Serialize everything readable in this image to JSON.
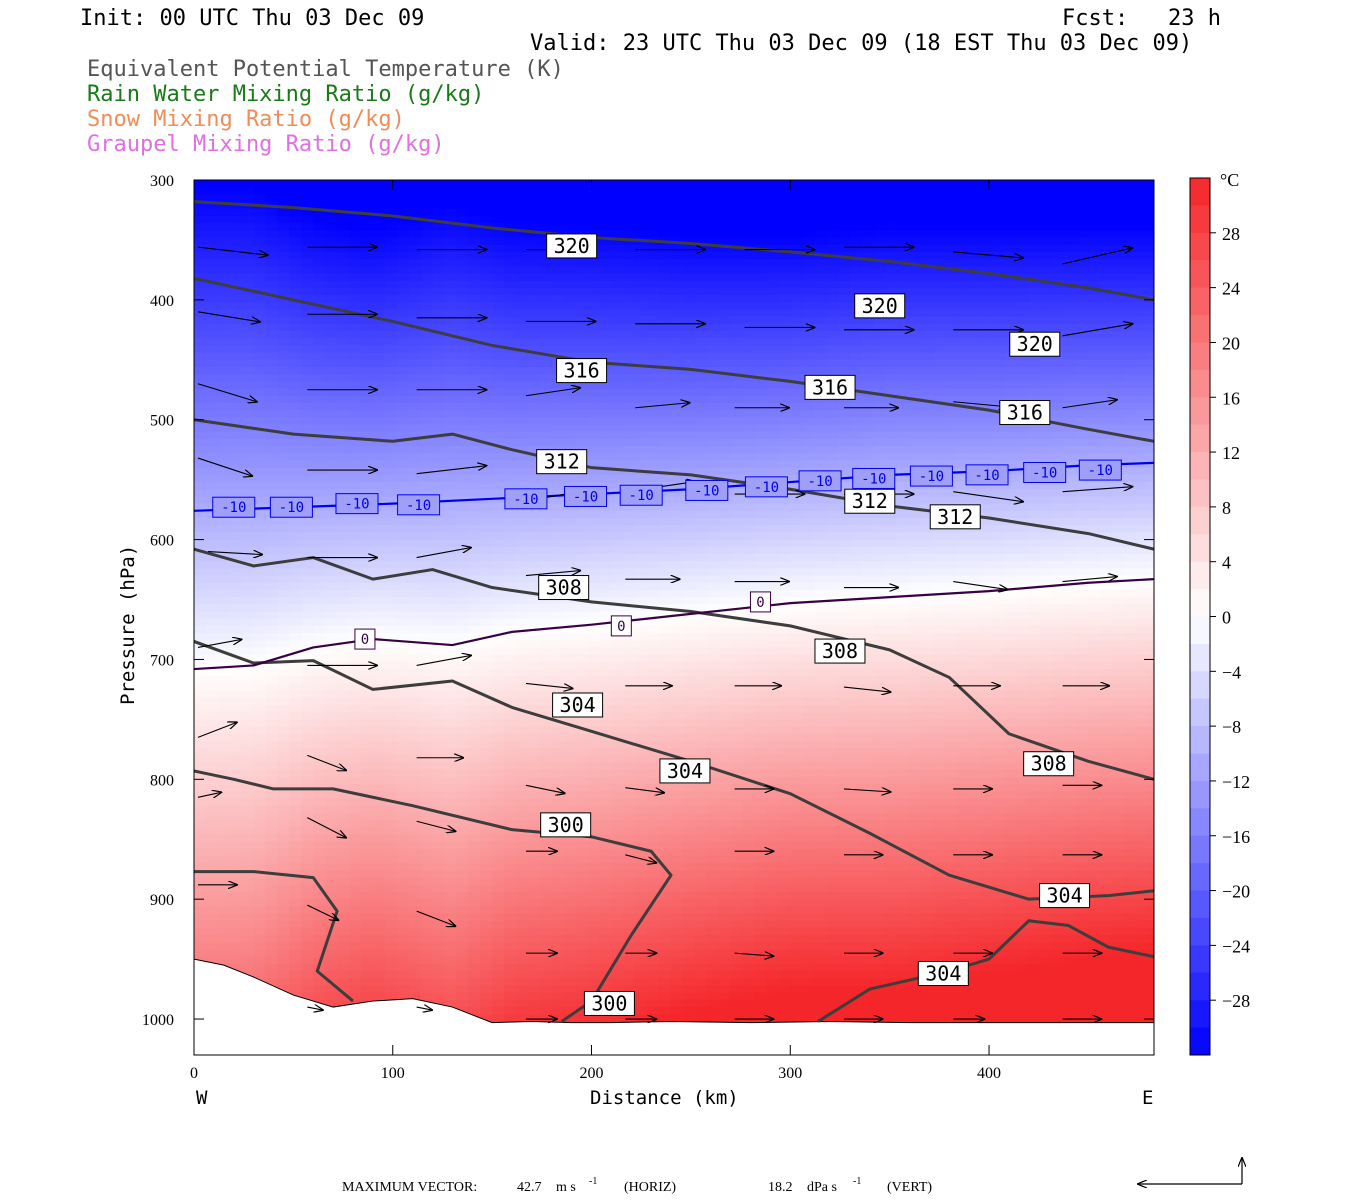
{
  "header": {
    "init": "Init: 00 UTC Thu 03 Dec 09",
    "fcst": "Fcst:   23 h",
    "valid": "Valid: 23 UTC Thu 03 Dec 09 (18 EST Thu 03 Dec 09)",
    "fields": [
      {
        "label": "Equivalent Potential Temperature (K)",
        "color": "#555555"
      },
      {
        "label": "Rain Water Mixing Ratio (g/kg)",
        "color": "#1a7a1a"
      },
      {
        "label": "Snow Mixing Ratio (g/kg)",
        "color": "#f08c5a"
      },
      {
        "label": "Graupel Mixing Ratio (g/kg)",
        "color": "#e070e0"
      }
    ]
  },
  "chart_data": {
    "type": "heatmap",
    "xlabel": "Distance (km)",
    "ylabel": "Pressure (hPa)",
    "xlim": [
      0,
      483
    ],
    "ylim": [
      1030,
      300
    ],
    "x_ticks": [
      0,
      100,
      200,
      300,
      400
    ],
    "y_ticks": [
      300,
      400,
      500,
      600,
      700,
      800,
      900,
      1000
    ],
    "x_end_labels": {
      "left": "W",
      "right": "E"
    },
    "colorbar": {
      "unit": "°C",
      "ticks": [
        28,
        24,
        20,
        16,
        12,
        8,
        4,
        0,
        -4,
        -8,
        -12,
        -16,
        -20,
        -24,
        -28
      ],
      "range": [
        -32,
        32
      ],
      "cold_color": "#0000ff",
      "warm_color": "#f5262a",
      "neutral_color": "#ffffff"
    },
    "theta_e_contours": [
      {
        "level": 320,
        "points": [
          [
            0,
            318
          ],
          [
            50,
            323
          ],
          [
            100,
            330
          ],
          [
            150,
            340
          ],
          [
            200,
            348
          ],
          [
            250,
            353
          ],
          [
            300,
            360
          ],
          [
            350,
            368
          ],
          [
            400,
            378
          ],
          [
            450,
            390
          ],
          [
            483,
            400
          ]
        ],
        "label_positions": [
          [
            190,
            355
          ],
          [
            345,
            405
          ],
          [
            423,
            437
          ]
        ]
      },
      {
        "level": 316,
        "points": [
          [
            0,
            382
          ],
          [
            50,
            400
          ],
          [
            100,
            418
          ],
          [
            150,
            438
          ],
          [
            200,
            452
          ],
          [
            250,
            458
          ],
          [
            300,
            468
          ],
          [
            350,
            480
          ],
          [
            400,
            492
          ],
          [
            450,
            508
          ],
          [
            483,
            518
          ]
        ],
        "label_positions": [
          [
            195,
            459
          ],
          [
            320,
            473
          ],
          [
            418,
            494
          ]
        ]
      },
      {
        "level": 312,
        "points": [
          [
            0,
            500
          ],
          [
            50,
            512
          ],
          [
            100,
            518
          ],
          [
            130,
            512
          ],
          [
            160,
            525
          ],
          [
            200,
            540
          ],
          [
            250,
            546
          ],
          [
            300,
            558
          ],
          [
            350,
            572
          ],
          [
            400,
            582
          ],
          [
            450,
            595
          ],
          [
            483,
            608
          ]
        ],
        "label_positions": [
          [
            185,
            535
          ],
          [
            340,
            568
          ],
          [
            383,
            581
          ]
        ]
      },
      {
        "level": 308,
        "points": [
          [
            0,
            608
          ],
          [
            30,
            622
          ],
          [
            60,
            615
          ],
          [
            90,
            633
          ],
          [
            120,
            625
          ],
          [
            150,
            640
          ],
          [
            200,
            652
          ],
          [
            250,
            660
          ],
          [
            300,
            672
          ],
          [
            350,
            692
          ],
          [
            380,
            715
          ],
          [
            410,
            762
          ],
          [
            450,
            785
          ],
          [
            483,
            800
          ]
        ],
        "label_positions": [
          [
            186,
            640
          ],
          [
            325,
            693
          ],
          [
            430,
            787
          ]
        ]
      },
      {
        "level": 304,
        "points": [
          [
            0,
            685
          ],
          [
            30,
            703
          ],
          [
            60,
            701
          ],
          [
            90,
            725
          ],
          [
            130,
            718
          ],
          [
            160,
            740
          ],
          [
            200,
            760
          ],
          [
            250,
            785
          ],
          [
            300,
            812
          ],
          [
            340,
            845
          ],
          [
            380,
            880
          ],
          [
            420,
            900
          ],
          [
            460,
            897
          ],
          [
            483,
            893
          ]
        ],
        "label_positions": [
          [
            193,
            738
          ],
          [
            247,
            793
          ],
          [
            438,
            897
          ]
        ]
      },
      {
        "level": 304,
        "points": [
          [
            314,
            1002
          ],
          [
            340,
            975
          ],
          [
            380,
            960
          ],
          [
            400,
            950
          ],
          [
            420,
            918
          ],
          [
            440,
            922
          ],
          [
            460,
            940
          ],
          [
            483,
            948
          ]
        ],
        "label_positions": [
          [
            377,
            962
          ]
        ]
      },
      {
        "level": 300,
        "points": [
          [
            0,
            793
          ],
          [
            20,
            800
          ],
          [
            40,
            808
          ],
          [
            70,
            808
          ],
          [
            110,
            822
          ],
          [
            160,
            842
          ],
          [
            200,
            848
          ],
          [
            230,
            860
          ],
          [
            240,
            880
          ],
          [
            220,
            930
          ],
          [
            200,
            985
          ],
          [
            185,
            1002
          ]
        ],
        "label_positions": [
          [
            187,
            838
          ],
          [
            209,
            987
          ]
        ]
      },
      {
        "level": 300,
        "points": [
          [
            0,
            877
          ],
          [
            30,
            877
          ],
          [
            60,
            882
          ],
          [
            72,
            910
          ],
          [
            62,
            960
          ],
          [
            80,
            985
          ]
        ],
        "label_positions": []
      }
    ],
    "temperature_contours": [
      {
        "level": -10,
        "color": "#0000ee",
        "points": [
          [
            0,
            576
          ],
          [
            50,
            573
          ],
          [
            100,
            570
          ],
          [
            150,
            566
          ],
          [
            200,
            562
          ],
          [
            250,
            558
          ],
          [
            300,
            552
          ],
          [
            350,
            546
          ],
          [
            400,
            543
          ],
          [
            450,
            538
          ],
          [
            483,
            536
          ]
        ],
        "label_positions": [
          [
            20,
            573
          ],
          [
            49,
            573
          ],
          [
            82,
            570
          ],
          [
            113,
            571
          ],
          [
            167,
            566
          ],
          [
            197,
            564
          ],
          [
            225,
            563
          ],
          [
            258,
            559
          ],
          [
            288,
            556
          ],
          [
            315,
            551
          ],
          [
            342,
            549
          ],
          [
            371,
            547
          ],
          [
            399,
            546
          ],
          [
            428,
            544
          ],
          [
            456,
            542
          ]
        ]
      },
      {
        "level": 0,
        "color": "#3a0045",
        "points": [
          [
            0,
            708
          ],
          [
            30,
            705
          ],
          [
            60,
            690
          ],
          [
            90,
            683
          ],
          [
            130,
            688
          ],
          [
            160,
            677
          ],
          [
            200,
            671
          ],
          [
            250,
            662
          ],
          [
            300,
            653
          ],
          [
            350,
            648
          ],
          [
            400,
            643
          ],
          [
            450,
            636
          ],
          [
            483,
            633
          ]
        ],
        "label_positions": [
          [
            86,
            683
          ],
          [
            215,
            672
          ],
          [
            285,
            652
          ]
        ]
      }
    ],
    "wind_vectors": [
      {
        "x": 0,
        "p": 356,
        "dx": 45,
        "dp": 8
      },
      {
        "x": 55,
        "p": 356,
        "dx": 45,
        "dp": 0
      },
      {
        "x": 110,
        "p": 358,
        "dx": 45,
        "dp": 0
      },
      {
        "x": 165,
        "p": 358,
        "dx": 45,
        "dp": 0
      },
      {
        "x": 220,
        "p": 358,
        "dx": 45,
        "dp": 0
      },
      {
        "x": 275,
        "p": 358,
        "dx": 45,
        "dp": 0
      },
      {
        "x": 325,
        "p": 356,
        "dx": 45,
        "dp": 0
      },
      {
        "x": 380,
        "p": 360,
        "dx": 45,
        "dp": 6
      },
      {
        "x": 435,
        "p": 370,
        "dx": 45,
        "dp": -16
      },
      {
        "x": 0,
        "p": 410,
        "dx": 40,
        "dp": 10
      },
      {
        "x": 55,
        "p": 412,
        "dx": 45,
        "dp": 0
      },
      {
        "x": 110,
        "p": 415,
        "dx": 45,
        "dp": 0
      },
      {
        "x": 165,
        "p": 418,
        "dx": 45,
        "dp": 0
      },
      {
        "x": 220,
        "p": 420,
        "dx": 45,
        "dp": 0
      },
      {
        "x": 275,
        "p": 423,
        "dx": 45,
        "dp": 0
      },
      {
        "x": 325,
        "p": 425,
        "dx": 45,
        "dp": 0
      },
      {
        "x": 380,
        "p": 425,
        "dx": 45,
        "dp": 0
      },
      {
        "x": 435,
        "p": 430,
        "dx": 45,
        "dp": -12
      },
      {
        "x": 0,
        "p": 470,
        "dx": 38,
        "dp": 18
      },
      {
        "x": 55,
        "p": 475,
        "dx": 45,
        "dp": 0
      },
      {
        "x": 110,
        "p": 475,
        "dx": 45,
        "dp": 0
      },
      {
        "x": 165,
        "p": 480,
        "dx": 35,
        "dp": -8
      },
      {
        "x": 220,
        "p": 490,
        "dx": 35,
        "dp": -5
      },
      {
        "x": 270,
        "p": 490,
        "dx": 35,
        "dp": 0
      },
      {
        "x": 325,
        "p": 490,
        "dx": 35,
        "dp": 0
      },
      {
        "x": 380,
        "p": 485,
        "dx": 35,
        "dp": 5
      },
      {
        "x": 435,
        "p": 490,
        "dx": 35,
        "dp": -8
      },
      {
        "x": 0,
        "p": 532,
        "dx": 35,
        "dp": 18
      },
      {
        "x": 55,
        "p": 542,
        "dx": 45,
        "dp": 0
      },
      {
        "x": 110,
        "p": 545,
        "dx": 45,
        "dp": -8
      },
      {
        "x": 165,
        "p": 568,
        "dx": 35,
        "dp": -10
      },
      {
        "x": 215,
        "p": 560,
        "dx": 45,
        "dp": -10
      },
      {
        "x": 270,
        "p": 562,
        "dx": 45,
        "dp": 0
      },
      {
        "x": 325,
        "p": 562,
        "dx": 45,
        "dp": 0
      },
      {
        "x": 380,
        "p": 560,
        "dx": 45,
        "dp": 10
      },
      {
        "x": 435,
        "p": 560,
        "dx": 45,
        "dp": -5
      },
      {
        "x": 5,
        "p": 610,
        "dx": 35,
        "dp": 3
      },
      {
        "x": 55,
        "p": 615,
        "dx": 45,
        "dp": 0
      },
      {
        "x": 110,
        "p": 615,
        "dx": 35,
        "dp": -10
      },
      {
        "x": 165,
        "p": 630,
        "dx": 35,
        "dp": -5
      },
      {
        "x": 215,
        "p": 633,
        "dx": 35,
        "dp": 0
      },
      {
        "x": 270,
        "p": 635,
        "dx": 35,
        "dp": 0
      },
      {
        "x": 325,
        "p": 640,
        "dx": 35,
        "dp": 0
      },
      {
        "x": 380,
        "p": 635,
        "dx": 35,
        "dp": 8
      },
      {
        "x": 435,
        "p": 635,
        "dx": 35,
        "dp": -5
      },
      {
        "x": 0,
        "p": 690,
        "dx": 28,
        "dp": -8
      },
      {
        "x": 55,
        "p": 705,
        "dx": 45,
        "dp": 0
      },
      {
        "x": 110,
        "p": 705,
        "dx": 35,
        "dp": -10
      },
      {
        "x": 165,
        "p": 720,
        "dx": 30,
        "dp": 5
      },
      {
        "x": 215,
        "p": 722,
        "dx": 30,
        "dp": 0
      },
      {
        "x": 270,
        "p": 722,
        "dx": 30,
        "dp": 0
      },
      {
        "x": 325,
        "p": 723,
        "dx": 30,
        "dp": 5
      },
      {
        "x": 380,
        "p": 722,
        "dx": 30,
        "dp": 0
      },
      {
        "x": 435,
        "p": 722,
        "dx": 30,
        "dp": 0
      },
      {
        "x": 0,
        "p": 765,
        "dx": 25,
        "dp": -15
      },
      {
        "x": 55,
        "p": 780,
        "dx": 25,
        "dp": 15
      },
      {
        "x": 110,
        "p": 782,
        "dx": 30,
        "dp": 0
      },
      {
        "x": 165,
        "p": 805,
        "dx": 25,
        "dp": 8
      },
      {
        "x": 215,
        "p": 807,
        "dx": 25,
        "dp": 5
      },
      {
        "x": 270,
        "p": 808,
        "dx": 25,
        "dp": 0
      },
      {
        "x": 325,
        "p": 808,
        "dx": 30,
        "dp": 3
      },
      {
        "x": 380,
        "p": 808,
        "dx": 25,
        "dp": 0
      },
      {
        "x": 435,
        "p": 805,
        "dx": 25,
        "dp": 0
      },
      {
        "x": 0,
        "p": 815,
        "dx": 15,
        "dp": -5
      },
      {
        "x": 55,
        "p": 832,
        "dx": 25,
        "dp": 20
      },
      {
        "x": 110,
        "p": 835,
        "dx": 25,
        "dp": 10
      },
      {
        "x": 165,
        "p": 860,
        "dx": 20,
        "dp": 0
      },
      {
        "x": 215,
        "p": 863,
        "dx": 20,
        "dp": 8
      },
      {
        "x": 270,
        "p": 860,
        "dx": 25,
        "dp": 0
      },
      {
        "x": 325,
        "p": 863,
        "dx": 25,
        "dp": 0
      },
      {
        "x": 380,
        "p": 863,
        "dx": 25,
        "dp": 0
      },
      {
        "x": 435,
        "p": 863,
        "dx": 25,
        "dp": 0
      },
      {
        "x": 0,
        "p": 888,
        "dx": 25,
        "dp": 0
      },
      {
        "x": 55,
        "p": 905,
        "dx": 20,
        "dp": 15
      },
      {
        "x": 110,
        "p": 910,
        "dx": 25,
        "dp": 15
      },
      {
        "x": 165,
        "p": 945,
        "dx": 20,
        "dp": 0
      },
      {
        "x": 215,
        "p": 945,
        "dx": 20,
        "dp": 0
      },
      {
        "x": 270,
        "p": 945,
        "dx": 25,
        "dp": 3
      },
      {
        "x": 325,
        "p": 945,
        "dx": 25,
        "dp": 0
      },
      {
        "x": 380,
        "p": 945,
        "dx": 25,
        "dp": 0
      },
      {
        "x": 435,
        "p": 945,
        "dx": 25,
        "dp": 0
      },
      {
        "x": 55,
        "p": 990,
        "dx": 10,
        "dp": 3
      },
      {
        "x": 110,
        "p": 990,
        "dx": 10,
        "dp": 3
      },
      {
        "x": 165,
        "p": 1000,
        "dx": 20,
        "dp": 0
      },
      {
        "x": 215,
        "p": 1000,
        "dx": 20,
        "dp": 0
      },
      {
        "x": 270,
        "p": 1000,
        "dx": 25,
        "dp": 0
      },
      {
        "x": 325,
        "p": 1000,
        "dx": 25,
        "dp": 0
      },
      {
        "x": 380,
        "p": 1000,
        "dx": 20,
        "dp": 0
      },
      {
        "x": 435,
        "p": 1000,
        "dx": 25,
        "dp": 0
      }
    ],
    "terrain_surface": [
      [
        0,
        950
      ],
      [
        15,
        955
      ],
      [
        30,
        965
      ],
      [
        50,
        980
      ],
      [
        70,
        990
      ],
      [
        90,
        985
      ],
      [
        110,
        983
      ],
      [
        130,
        990
      ],
      [
        150,
        1003
      ],
      [
        170,
        1002
      ],
      [
        190,
        1003
      ],
      [
        210,
        1003
      ],
      [
        240,
        1002
      ],
      [
        280,
        1003
      ],
      [
        320,
        1002
      ],
      [
        360,
        1003
      ],
      [
        400,
        1003
      ],
      [
        440,
        1003
      ],
      [
        483,
        1003
      ]
    ]
  },
  "footer": {
    "label": "MAXIMUM VECTOR:",
    "horiz_value": "42.7",
    "horiz_unit": "m s",
    "horiz_exp": "-1",
    "horiz_tag": "(HORIZ)",
    "vert_value": "18.2",
    "vert_unit": "dPa s",
    "vert_exp": "-1",
    "vert_tag": "(VERT)"
  }
}
